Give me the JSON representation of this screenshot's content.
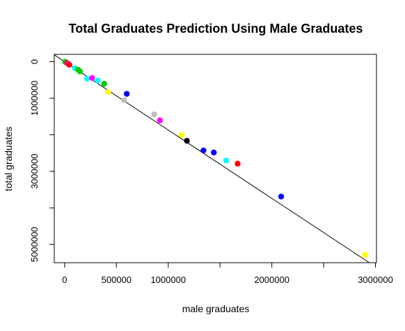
{
  "chart_data": {
    "type": "scatter",
    "title": "Total Graduates Prediction Using Male Graduates",
    "xlabel": "male graduates",
    "ylabel": "total graduates",
    "xlim": [
      -100000,
      3010000
    ],
    "ylim": [
      5500000,
      -200000
    ],
    "x_ticks": [
      0,
      500000,
      1000000,
      1500000,
      2000000,
      2500000,
      3000000
    ],
    "x_tick_labels": [
      "0",
      "500000",
      "1000000",
      "",
      "2000000",
      "",
      "3000000"
    ],
    "y_ticks": [
      0,
      1000000,
      2000000,
      3000000,
      4000000,
      5000000
    ],
    "y_tick_labels": [
      "0",
      "1000000",
      "",
      "3000000",
      "",
      "5000000"
    ],
    "regression_line": {
      "slope": 1.87,
      "intercept": 0
    },
    "points": [
      {
        "x": 5000,
        "y": 5000,
        "color": "#00cd00"
      },
      {
        "x": 15000,
        "y": 20000,
        "color": "#00cd00"
      },
      {
        "x": 25000,
        "y": 40000,
        "color": "#ff0000"
      },
      {
        "x": 35000,
        "y": 60000,
        "color": "#ff00ff"
      },
      {
        "x": 45000,
        "y": 85000,
        "color": "#ff0000"
      },
      {
        "x": 100000,
        "y": 180000,
        "color": "#00ffff"
      },
      {
        "x": 130000,
        "y": 220000,
        "color": "#00cd00"
      },
      {
        "x": 148000,
        "y": 268000,
        "color": "#00cd00"
      },
      {
        "x": 215000,
        "y": 465000,
        "color": "#00ffff"
      },
      {
        "x": 265000,
        "y": 445000,
        "color": "#ff00ff"
      },
      {
        "x": 320000,
        "y": 515000,
        "color": "#00ffff"
      },
      {
        "x": 382000,
        "y": 605000,
        "color": "#00cd00"
      },
      {
        "x": 420000,
        "y": 830000,
        "color": "#ffff00"
      },
      {
        "x": 575000,
        "y": 1055000,
        "color": "#bebebe"
      },
      {
        "x": 600000,
        "y": 880000,
        "color": "#0000ff"
      },
      {
        "x": 865000,
        "y": 1440000,
        "color": "#bebebe"
      },
      {
        "x": 920000,
        "y": 1605000,
        "color": "#ff00ff"
      },
      {
        "x": 1130000,
        "y": 2005000,
        "color": "#ffff00"
      },
      {
        "x": 1180000,
        "y": 2165000,
        "color": "#000000"
      },
      {
        "x": 1340000,
        "y": 2430000,
        "color": "#0000ff"
      },
      {
        "x": 1440000,
        "y": 2485000,
        "color": "#0000ff"
      },
      {
        "x": 1560000,
        "y": 2705000,
        "color": "#00ffff"
      },
      {
        "x": 1670000,
        "y": 2790000,
        "color": "#ff0000"
      },
      {
        "x": 2090000,
        "y": 3690000,
        "color": "#0000ff"
      },
      {
        "x": 2900000,
        "y": 5285000,
        "color": "#ffff00"
      }
    ]
  }
}
